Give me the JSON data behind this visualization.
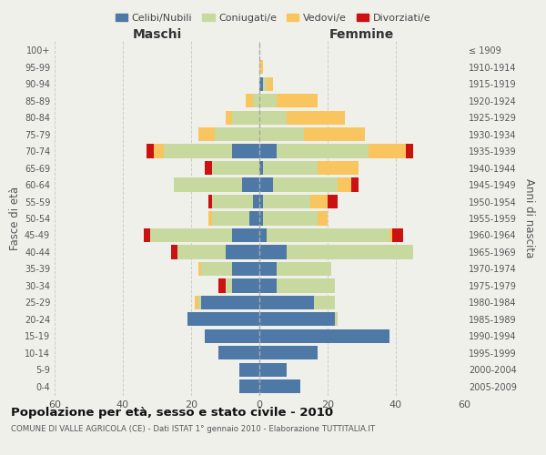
{
  "age_groups": [
    "0-4",
    "5-9",
    "10-14",
    "15-19",
    "20-24",
    "25-29",
    "30-34",
    "35-39",
    "40-44",
    "45-49",
    "50-54",
    "55-59",
    "60-64",
    "65-69",
    "70-74",
    "75-79",
    "80-84",
    "85-89",
    "90-94",
    "95-99",
    "100+"
  ],
  "birth_years": [
    "2005-2009",
    "2000-2004",
    "1995-1999",
    "1990-1994",
    "1985-1989",
    "1980-1984",
    "1975-1979",
    "1970-1974",
    "1965-1969",
    "1960-1964",
    "1955-1959",
    "1950-1954",
    "1945-1949",
    "1940-1944",
    "1935-1939",
    "1930-1934",
    "1925-1929",
    "1920-1924",
    "1915-1919",
    "1910-1914",
    "≤ 1909"
  ],
  "males": {
    "celibi": [
      6,
      6,
      12,
      16,
      21,
      17,
      8,
      8,
      10,
      8,
      3,
      2,
      5,
      0,
      8,
      0,
      0,
      0,
      0,
      0,
      0
    ],
    "coniugati": [
      0,
      0,
      0,
      0,
      0,
      1,
      2,
      9,
      14,
      24,
      11,
      12,
      20,
      14,
      20,
      13,
      8,
      2,
      0,
      0,
      0
    ],
    "vedovi": [
      0,
      0,
      0,
      0,
      0,
      1,
      0,
      1,
      0,
      0,
      1,
      0,
      0,
      0,
      3,
      5,
      2,
      2,
      0,
      0,
      0
    ],
    "divorziati": [
      0,
      0,
      0,
      0,
      0,
      0,
      2,
      0,
      2,
      2,
      0,
      1,
      0,
      2,
      2,
      0,
      0,
      0,
      0,
      0,
      0
    ]
  },
  "females": {
    "nubili": [
      12,
      8,
      17,
      38,
      22,
      16,
      5,
      5,
      8,
      2,
      1,
      1,
      4,
      1,
      5,
      0,
      0,
      0,
      1,
      0,
      0
    ],
    "coniugate": [
      0,
      0,
      0,
      0,
      1,
      6,
      17,
      16,
      37,
      36,
      16,
      14,
      19,
      16,
      27,
      13,
      8,
      5,
      1,
      0,
      0
    ],
    "vedove": [
      0,
      0,
      0,
      0,
      0,
      0,
      0,
      0,
      0,
      1,
      3,
      5,
      4,
      12,
      11,
      18,
      17,
      12,
      2,
      1,
      0
    ],
    "divorziate": [
      0,
      0,
      0,
      0,
      0,
      0,
      0,
      0,
      0,
      3,
      0,
      3,
      2,
      0,
      2,
      0,
      0,
      0,
      0,
      0,
      0
    ]
  },
  "colors": {
    "celibi_nubili": "#4e79a7",
    "coniugati": "#c8d9a0",
    "vedovi": "#f9c55e",
    "divorziati": "#cc1111"
  },
  "xlim": 60,
  "title": "Popolazione per età, sesso e stato civile - 2010",
  "subtitle": "COMUNE DI VALLE AGRICOLA (CE) - Dati ISTAT 1° gennaio 2010 - Elaborazione TUTTITALIA.IT",
  "ylabel_left": "Fasce di età",
  "ylabel_right": "Anni di nascita",
  "xlabel_left": "Maschi",
  "xlabel_right": "Femmine",
  "legend_labels": [
    "Celibi/Nubili",
    "Coniugati/e",
    "Vedovi/e",
    "Divorziati/e"
  ],
  "background_color": "#f0f0eb"
}
